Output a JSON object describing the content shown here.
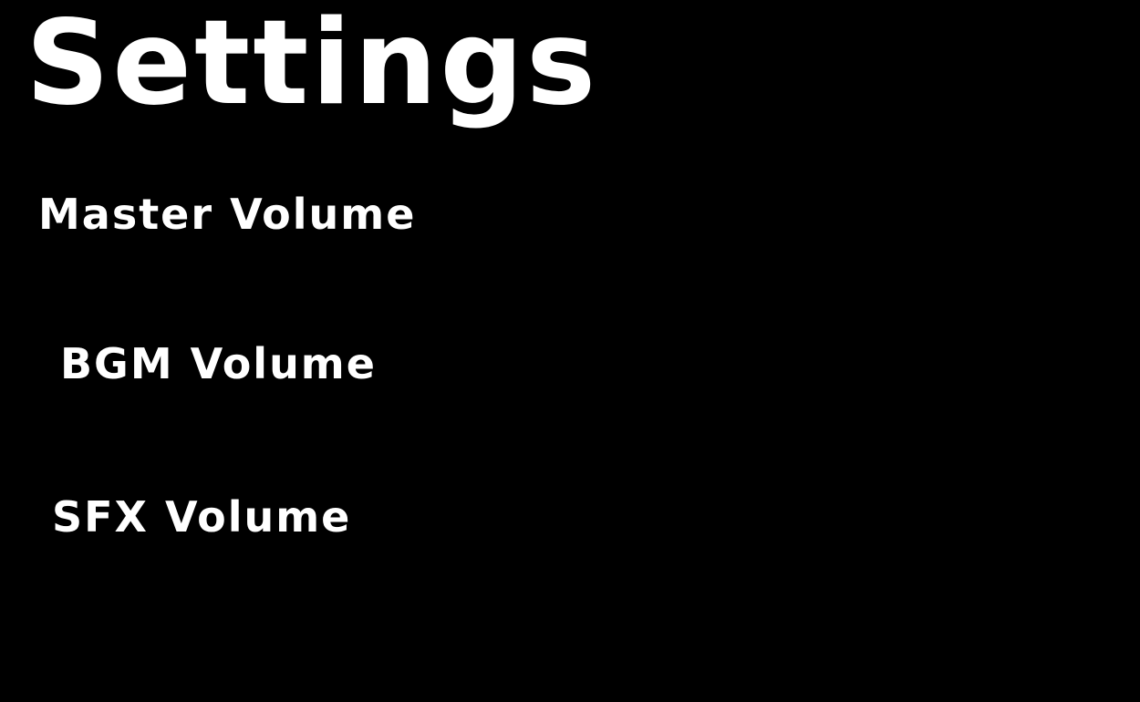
{
  "screen": {
    "title": "Settings"
  },
  "settings": {
    "items": [
      {
        "label": "Master Volume"
      },
      {
        "label": "BGM Volume"
      },
      {
        "label": "SFX Volume"
      }
    ]
  },
  "colors": {
    "background": "#000000",
    "text": "#ffffff"
  }
}
